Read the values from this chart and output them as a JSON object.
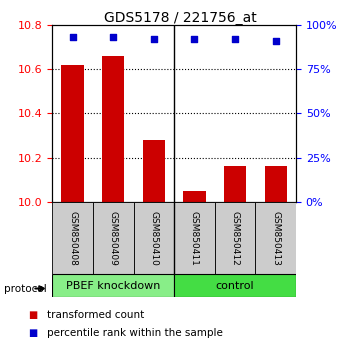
{
  "title": "GDS5178 / 221756_at",
  "categories": [
    "GSM850408",
    "GSM850409",
    "GSM850410",
    "GSM850411",
    "GSM850412",
    "GSM850413"
  ],
  "bar_values": [
    10.62,
    10.66,
    10.28,
    10.05,
    10.16,
    10.16
  ],
  "dot_values": [
    93,
    93,
    92,
    92,
    92,
    91
  ],
  "ylim_left": [
    10.0,
    10.8
  ],
  "ylim_right": [
    0,
    100
  ],
  "yticks_left": [
    10.0,
    10.2,
    10.4,
    10.6,
    10.8
  ],
  "yticks_right": [
    0,
    25,
    50,
    75,
    100
  ],
  "bar_color": "#cc0000",
  "dot_color": "#0000cc",
  "groups": [
    {
      "label": "PBEF knockdown",
      "color": "#88ee88"
    },
    {
      "label": "control",
      "color": "#44dd44"
    }
  ],
  "protocol_label": "protocol",
  "legend_items": [
    {
      "label": "transformed count",
      "color": "#cc0000"
    },
    {
      "label": "percentile rank within the sample",
      "color": "#0000cc"
    }
  ],
  "background_color": "#ffffff",
  "label_area_bg": "#cccccc",
  "title_fontsize": 10,
  "tick_fontsize": 8,
  "label_fontsize": 6.5,
  "group_fontsize": 8,
  "legend_fontsize": 7.5
}
